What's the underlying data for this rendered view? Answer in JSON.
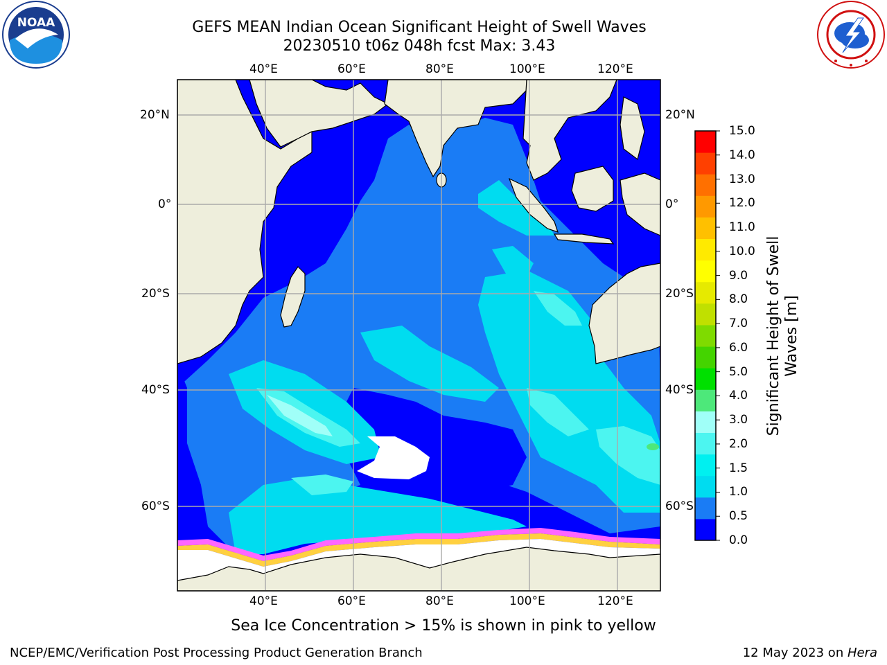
{
  "header": {
    "title_line1": "GEFS MEAN Indian Ocean Significant Height of Swell Waves",
    "title_line2": "20230510 t06z 048h fcst   Max: 3.43"
  },
  "logos": {
    "noaa": {
      "text": "NOAA",
      "ring_text": "NATIONAL OCEANIC AND ATMOSPHERIC ADMINISTRATION · U.S. DEPARTMENT OF COMMERCE"
    },
    "nws": {
      "ring_text": "NATIONAL WEATHER SERVICE"
    }
  },
  "axes": {
    "top_lon_labels": [
      "40°E",
      "60°E",
      "80°E",
      "100°E",
      "120°E"
    ],
    "bottom_lon_labels": [
      "40°E",
      "60°E",
      "80°E",
      "100°E",
      "120°E"
    ],
    "left_lat_labels": [
      "20°N",
      "0°",
      "20°S",
      "40°S",
      "60°S"
    ],
    "right_lat_labels": [
      "20°N",
      "0°",
      "20°S",
      "40°S",
      "60°S"
    ]
  },
  "colorbar": {
    "title_line1": "Significant Height of Swell",
    "title_line2": "Waves [m]",
    "tick_labels": [
      "15.0",
      "14.0",
      "13.0",
      "12.0",
      "11.0",
      "10.0",
      "9.0",
      "8.0",
      "7.0",
      "6.0",
      "5.0",
      "4.0",
      "3.0",
      "2.0",
      "1.5",
      "1.0",
      "0.5",
      "0.0"
    ],
    "colors_bottom_to_top": [
      "#0000ff",
      "#1a7cf5",
      "#00dcf0",
      "#00f0f0",
      "#4cf5f0",
      "#a0fff8",
      "#4de87a",
      "#00e000",
      "#44d400",
      "#7fdb00",
      "#c0e000",
      "#e6ea00",
      "#ffff00",
      "#ffea00",
      "#ffc000",
      "#ff9900",
      "#ff7000",
      "#ff4000",
      "#ff0000"
    ]
  },
  "footer": {
    "ice_note": "Sea Ice Concentration > 15% is shown in pink to yellow",
    "credit": "NCEP/EMC/Verification Post Processing Product Generation Branch",
    "date_prefix": "12 May 2023 on ",
    "date_host": "Hera"
  }
}
